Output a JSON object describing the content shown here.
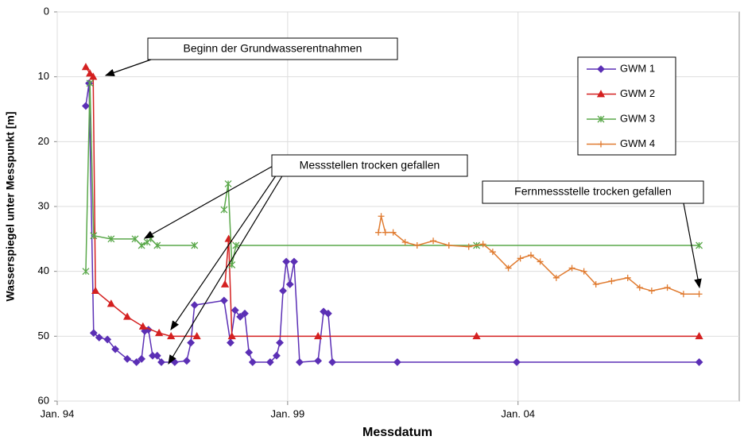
{
  "chart_data": {
    "type": "line",
    "y_label": "Wasserspiegel unter Messpunkt [m]",
    "x_label": "Messdatum",
    "xlim": [
      1994,
      2008.8
    ],
    "xticks": [
      {
        "value": 1994,
        "label": "Jan. 94"
      },
      {
        "value": 1999,
        "label": "Jan. 99"
      },
      {
        "value": 2004,
        "label": "Jan. 04"
      }
    ],
    "ylim": [
      0,
      60
    ],
    "y_inverted": true,
    "yticks": [
      0,
      10,
      20,
      30,
      40,
      50,
      60
    ],
    "grid": true,
    "legend": "upper right",
    "series": [
      {
        "name": "GWM 1",
        "color": "#5b2fb5",
        "marker": "diamond",
        "x": [
          1994.62,
          1994.69,
          1994.79,
          1994.91,
          1995.09,
          1995.26,
          1995.52,
          1995.72,
          1995.83,
          1995.9,
          1995.98,
          1996.07,
          1996.17,
          1996.26,
          1996.55,
          1996.81,
          1996.9,
          1996.98,
          1997.62,
          1997.76,
          1997.86,
          1997.97,
          1998.07,
          1998.16,
          1998.24,
          1998.62,
          1998.76,
          1998.83,
          1998.9,
          1998.97,
          1999.05,
          1999.14,
          1999.26,
          1999.66,
          1999.78,
          1999.88,
          1999.97,
          2001.38,
          2003.97,
          2007.93
        ],
        "values": [
          14.5,
          11,
          49.5,
          50.2,
          50.5,
          52,
          53.5,
          54,
          53.5,
          49.2,
          49,
          53,
          53,
          54,
          54,
          53.8,
          51,
          45.2,
          44.5,
          51,
          46,
          47,
          46.5,
          52.5,
          54,
          54,
          53,
          51,
          43,
          38.5,
          42,
          38.5,
          54,
          53.8,
          46.2,
          46.5,
          54,
          54,
          54,
          54
        ]
      },
      {
        "name": "GWM 2",
        "color": "#d42020",
        "marker": "triangle",
        "x": [
          1994.62,
          1994.71,
          1994.78,
          1994.83,
          1995.17,
          1995.52,
          1995.86,
          1996.21,
          1996.47,
          1997.03,
          null,
          1997.64,
          1997.72,
          1997.79,
          1999.66,
          2003.1,
          2007.93
        ],
        "values": [
          8.5,
          9.5,
          10,
          43,
          45,
          47,
          48.5,
          49.5,
          50,
          50,
          null,
          42,
          35,
          50,
          50,
          50,
          50
        ]
      },
      {
        "name": "GWM 3",
        "color": "#5aa84a",
        "marker": "asterisk",
        "x": [
          1994.62,
          1994.71,
          1994.79,
          1995.17,
          1995.69,
          1995.83,
          1995.95,
          1996.03,
          1996.17,
          1996.98,
          null,
          1997.62,
          1997.71,
          1997.79,
          1997.88,
          2003.1,
          2007.93
        ],
        "values": [
          40,
          11,
          34.5,
          35,
          35,
          36,
          35.5,
          35,
          36,
          36,
          null,
          30.5,
          26.5,
          39,
          36,
          36,
          36
        ]
      },
      {
        "name": "GWM 4",
        "color": "#e07b30",
        "marker": "plus",
        "x": [
          2000.97,
          2001.03,
          2001.12,
          2001.29,
          2001.55,
          2001.81,
          2002.16,
          2002.5,
          2002.93,
          2003.24,
          2003.45,
          2003.79,
          2004.05,
          2004.28,
          2004.48,
          2004.83,
          2005.17,
          2005.43,
          2005.69,
          2006.03,
          2006.38,
          2006.64,
          2006.9,
          2007.24,
          2007.59,
          2007.93
        ],
        "values": [
          34,
          31.5,
          34,
          34,
          35.5,
          36,
          35.3,
          36,
          36.2,
          35.8,
          37,
          39.5,
          38,
          37.5,
          38.5,
          41,
          39.5,
          40,
          42,
          41.5,
          41,
          42.5,
          43,
          42.5,
          43.5,
          43.5
        ]
      }
    ],
    "annotations": [
      "Beginn der Grundwasserentnahmen",
      "Messstellen trocken gefallen",
      "Fernmessstelle trocken gefallen"
    ]
  }
}
